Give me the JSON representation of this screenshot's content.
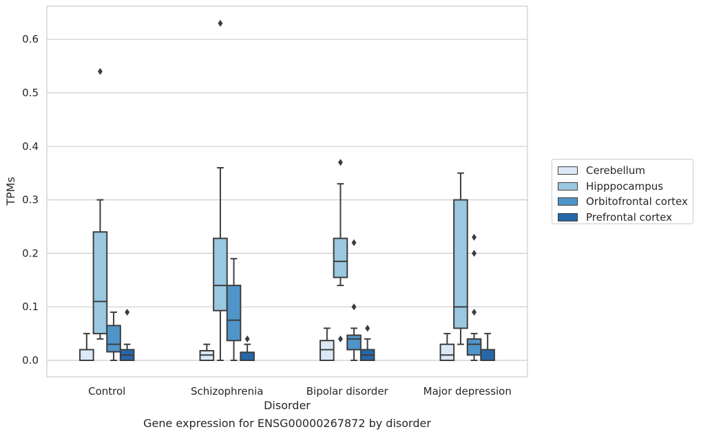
{
  "chart_data": {
    "type": "box",
    "title": "Gene expression for ENSG00000267872 by disorder",
    "xlabel": "Disorder",
    "ylabel": "TPMs",
    "ylim": [
      -0.03,
      0.66
    ],
    "yticks": [
      "0.0",
      "0.1",
      "0.2",
      "0.3",
      "0.4",
      "0.5",
      "0.6"
    ],
    "grid": true,
    "legend_position": "right",
    "categories": [
      "Control",
      "Schizophrenia",
      "Bipolar disorder",
      "Major depression"
    ],
    "series": [
      {
        "name": "Cerebellum",
        "color": "#dbe9f6",
        "boxes": [
          {
            "q1": 0.0,
            "median": 0.0,
            "q3": 0.02,
            "whislo": 0.0,
            "whishi": 0.05,
            "fliers": []
          },
          {
            "q1": 0.0,
            "median": 0.01,
            "q3": 0.018,
            "whislo": 0.0,
            "whishi": 0.03,
            "fliers": []
          },
          {
            "q1": 0.0,
            "median": 0.02,
            "q3": 0.037,
            "whislo": 0.0,
            "whishi": 0.06,
            "fliers": []
          },
          {
            "q1": 0.0,
            "median": 0.01,
            "q3": 0.03,
            "whislo": 0.0,
            "whishi": 0.05,
            "fliers": []
          }
        ]
      },
      {
        "name": "Hipppocampus",
        "color": "#9ac8e0",
        "boxes": [
          {
            "q1": 0.05,
            "median": 0.11,
            "q3": 0.24,
            "whislo": 0.04,
            "whishi": 0.3,
            "fliers": [
              0.54
            ]
          },
          {
            "q1": 0.093,
            "median": 0.14,
            "q3": 0.228,
            "whislo": 0.0,
            "whishi": 0.36,
            "fliers": [
              0.63
            ]
          },
          {
            "q1": 0.155,
            "median": 0.185,
            "q3": 0.228,
            "whislo": 0.14,
            "whishi": 0.33,
            "fliers": [
              0.37,
              0.04
            ]
          },
          {
            "q1": 0.06,
            "median": 0.1,
            "q3": 0.3,
            "whislo": 0.03,
            "whishi": 0.35,
            "fliers": []
          }
        ]
      },
      {
        "name": "Orbitofrontal cortex",
        "color": "#5095c9",
        "boxes": [
          {
            "q1": 0.016,
            "median": 0.03,
            "q3": 0.065,
            "whislo": 0.0,
            "whishi": 0.09,
            "fliers": []
          },
          {
            "q1": 0.037,
            "median": 0.075,
            "q3": 0.14,
            "whislo": 0.0,
            "whishi": 0.19,
            "fliers": []
          },
          {
            "q1": 0.02,
            "median": 0.04,
            "q3": 0.047,
            "whislo": 0.0,
            "whishi": 0.06,
            "fliers": [
              0.22,
              0.1
            ]
          },
          {
            "q1": 0.01,
            "median": 0.03,
            "q3": 0.04,
            "whislo": 0.0,
            "whishi": 0.05,
            "fliers": [
              0.23,
              0.2,
              0.09
            ]
          }
        ]
      },
      {
        "name": "Prefrontal cortex",
        "color": "#2767a9",
        "boxes": [
          {
            "q1": 0.0,
            "median": 0.01,
            "q3": 0.02,
            "whislo": 0.0,
            "whishi": 0.03,
            "fliers": [
              0.09
            ]
          },
          {
            "q1": 0.0,
            "median": 0.0,
            "q3": 0.015,
            "whislo": 0.0,
            "whishi": 0.03,
            "fliers": [
              0.04
            ]
          },
          {
            "q1": 0.0,
            "median": 0.01,
            "q3": 0.02,
            "whislo": 0.0,
            "whishi": 0.04,
            "fliers": [
              0.06
            ]
          },
          {
            "q1": 0.0,
            "median": 0.0,
            "q3": 0.02,
            "whislo": 0.0,
            "whishi": 0.05,
            "fliers": []
          }
        ]
      }
    ]
  }
}
